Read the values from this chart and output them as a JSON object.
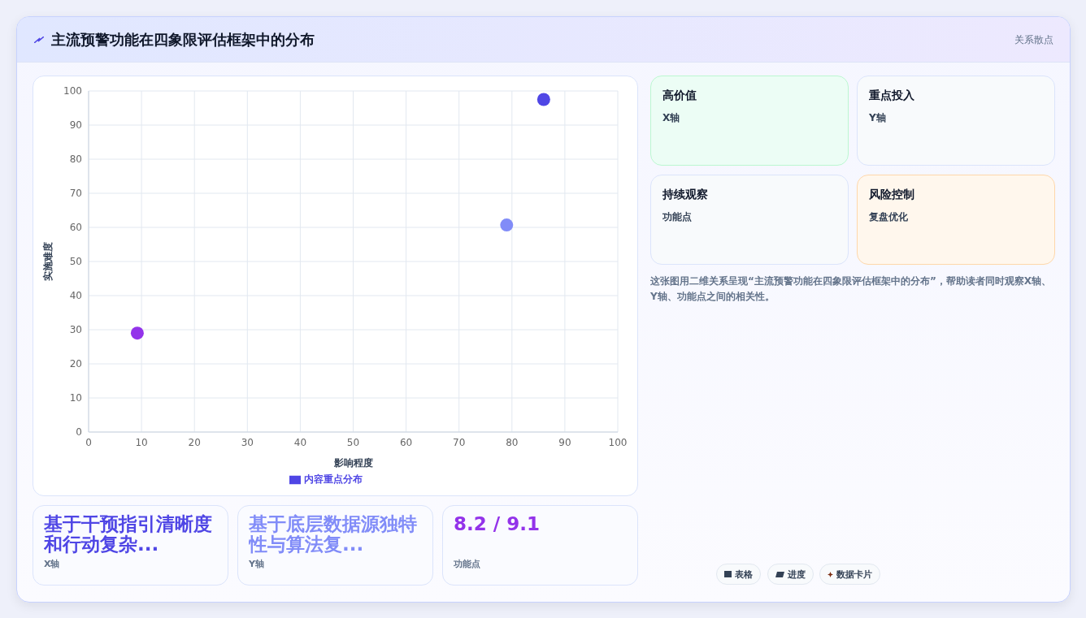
{
  "chart_data": {
    "type": "scatter",
    "title": "主流预警功能在四象限评估框架中的分布",
    "xlabel": "影响程度",
    "ylabel": "实施难度",
    "x": [
      9.2,
      79,
      86
    ],
    "series": [
      {
        "name": "内容重点分布",
        "color": "#4f46e5",
        "colors": [
          "#9333ea",
          "#818cf8",
          "#4f46e5"
        ],
        "values": [
          29,
          60.7,
          97.5
        ]
      }
    ],
    "xlim": [
      0,
      100
    ],
    "xticks": [
      0,
      10,
      20,
      30,
      40,
      50,
      60,
      70,
      80,
      90,
      100
    ],
    "ylim": [
      0,
      100
    ],
    "yticks": [
      0,
      10,
      20,
      30,
      40,
      50,
      60,
      70,
      80,
      90,
      100
    ],
    "grid": true,
    "legend": "bottom",
    "marker": "circle",
    "annotations": [
      "关系散点",
      "高价值",
      "X轴",
      "重点投入",
      "Y轴",
      "持续观察",
      "功能点",
      "风险控制",
      "复盘优化",
      "这张图用二维关系呈现“主流预警功能在四象限评估框架中的分布”，帮助读者同时观察X轴、Y轴、功能点之间的相关性。",
      "基于干预指引清晰度和行动复杂...",
      "X轴",
      "基于底层数据源独特性与算法复...",
      "Y轴",
      "8.2 / 9.1",
      "功能点",
      "表格",
      "进度",
      "数据卡片"
    ]
  }
}
